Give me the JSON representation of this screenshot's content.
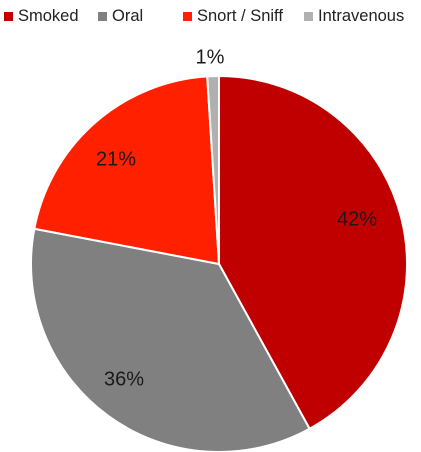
{
  "chart_data": {
    "type": "pie",
    "title": "",
    "legend_position": "top",
    "slices": [
      {
        "name": "Smoked",
        "value": 42,
        "label": "42%",
        "color": "#c00000"
      },
      {
        "name": "Oral",
        "value": 36,
        "label": "36%",
        "color": "#808080"
      },
      {
        "name": "Snort / Sniff",
        "value": 21,
        "label": "21%",
        "color": "#ff2000"
      },
      {
        "name": "Intravenous",
        "value": 1,
        "label": "1%",
        "color": "#b0b0b0"
      }
    ]
  }
}
